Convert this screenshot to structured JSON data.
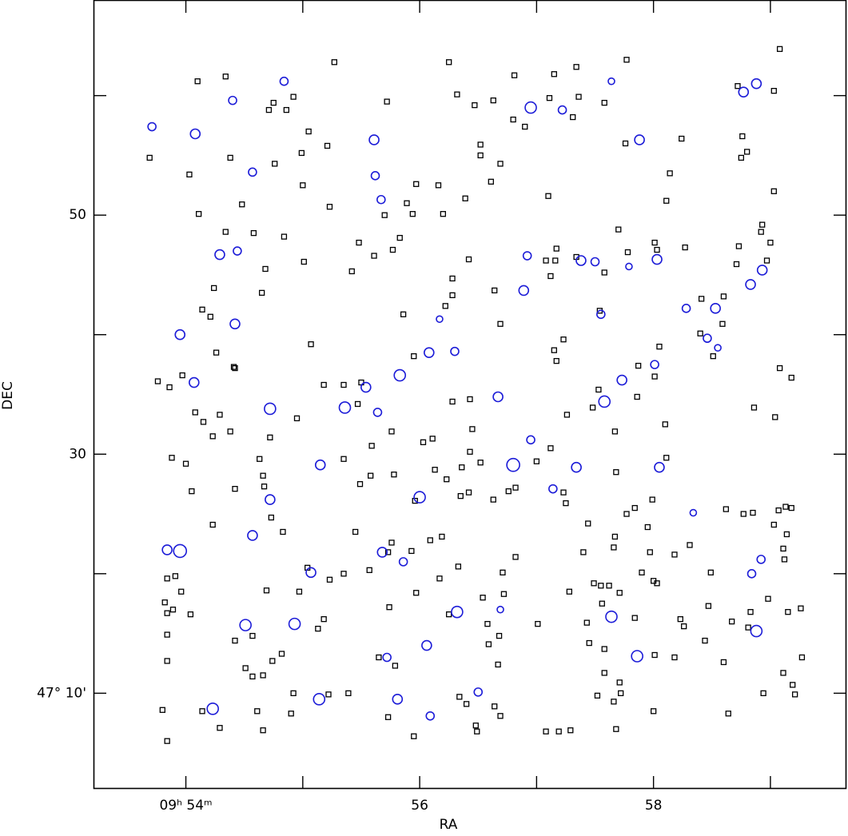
{
  "chart_data": {
    "type": "scatter",
    "x_label": "RA",
    "y_label": "DEC",
    "xlim": [
      53.21,
      59.65
    ],
    "ylim": [
      2,
      68
    ],
    "xticks": [
      {
        "value": 54,
        "label": "09ʰ 54ᵐ"
      },
      56,
      58
    ],
    "xminor": [
      55,
      57,
      59
    ],
    "yticks": [
      {
        "value": 10,
        "label": "47° 10'"
      },
      30,
      50
    ],
    "yminor": [
      20,
      40,
      60
    ],
    "series": [
      {
        "marker": "square",
        "color": "#000000",
        "x": [
          53.69,
          54.1,
          54.34,
          55.27,
          56.25,
          56.81,
          57.15,
          57.34,
          57.77,
          59.08,
          58.72,
          59.03,
          54.71,
          54.75,
          54.86,
          54.92,
          55.72,
          56.32,
          56.47,
          56.63,
          56.8,
          56.9,
          57.11,
          57.31,
          57.36,
          57.58,
          55.05,
          54.99,
          55.21,
          56.52,
          56.52,
          56.69,
          56.61,
          57.76,
          58.24,
          58.76,
          58.75,
          58.8,
          54.38,
          54.76,
          54.03,
          54.48,
          54.11,
          54.58,
          54.34,
          54.84,
          55.0,
          55.23,
          55.89,
          55.94,
          55.97,
          56.16,
          56.2,
          56.39,
          55.7,
          57.1,
          58.14,
          58.11,
          59.03,
          58.93,
          58.92,
          59.0,
          58.73,
          58.71,
          58.97,
          58.27,
          58.03,
          58.01,
          57.7,
          57.58,
          57.78,
          57.17,
          57.16,
          57.08,
          57.12,
          57.34,
          56.42,
          56.28,
          56.28,
          56.22,
          56.64,
          56.69,
          55.48,
          55.61,
          55.77,
          55.83,
          55.42,
          55.01,
          54.68,
          54.65,
          54.24,
          54.14,
          54.21,
          54.26,
          54.41,
          55.07,
          55.86,
          55.95,
          57.15,
          57.23,
          57.17,
          57.54,
          58.41,
          58.6,
          58.59,
          58.4,
          58.51,
          58.05,
          57.87,
          58.01,
          59.08,
          59.18,
          58.86,
          59.04,
          58.1,
          57.86,
          57.67,
          57.53,
          57.48,
          57.26,
          56.43,
          56.28,
          56.11,
          56.03,
          55.76,
          55.59,
          55.5,
          55.35,
          55.47,
          55.18,
          55.35,
          54.95,
          54.72,
          54.63,
          54.66,
          54.67,
          54.73,
          54.83,
          54.23,
          54.42,
          54.05,
          54.0,
          53.88,
          53.76,
          53.86,
          53.97,
          54.08,
          54.15,
          54.23,
          54.29,
          54.38,
          54.42,
          56.36,
          56.43,
          56.45,
          56.52,
          56.13,
          56.23,
          55.78,
          55.58,
          55.49,
          55.96,
          56.42,
          56.35,
          56.63,
          56.76,
          56.82,
          57.0,
          57.12,
          57.23,
          57.25,
          57.68,
          58.11,
          57.99,
          57.84,
          57.77,
          57.95,
          58.62,
          58.77,
          58.85,
          59.07,
          59.13,
          59.18,
          59.03,
          59.14,
          59.11,
          59.12,
          58.98,
          59.26,
          59.15,
          59.27,
          59.11,
          59.19,
          59.21,
          58.94,
          58.83,
          58.67,
          58.81,
          58.6,
          58.44,
          58.49,
          58.47,
          58.31,
          58.18,
          58.0,
          58.03,
          57.97,
          57.9,
          57.67,
          57.66,
          57.44,
          57.4,
          57.49,
          57.62,
          57.55,
          57.71,
          57.56,
          57.28,
          56.72,
          56.71,
          56.82,
          56.54,
          56.33,
          56.17,
          56.19,
          56.09,
          55.93,
          55.73,
          55.76,
          55.45,
          55.57,
          55.35,
          55.23,
          55.04,
          54.97,
          54.69,
          54.51,
          54.57,
          54.66,
          54.74,
          54.82,
          55.18,
          55.13,
          54.57,
          54.42,
          55.65,
          55.79,
          55.74,
          55.97,
          56.25,
          56.58,
          56.59,
          56.68,
          56.67,
          57.01,
          57.43,
          57.45,
          57.58,
          57.84,
          58.23,
          58.26,
          58.18,
          58.01,
          57.58,
          57.71,
          57.72,
          57.66,
          57.52,
          58.0,
          57.68,
          58.64,
          57.29,
          57.08,
          57.19,
          56.69,
          56.64,
          56.48,
          56.49,
          56.4,
          56.34,
          55.95,
          55.73,
          55.22,
          55.39,
          54.92,
          54.9,
          54.61,
          54.66,
          54.29,
          54.14,
          53.84,
          53.8,
          53.84,
          53.84,
          53.89,
          53.84,
          53.82,
          53.84,
          54.04,
          53.96,
          53.91
        ],
        "values": [
          54.8,
          61.2,
          61.6,
          62.8,
          62.8,
          61.7,
          61.8,
          62.4,
          63.0,
          63.9,
          60.8,
          60.4,
          58.8,
          59.4,
          58.8,
          59.9,
          59.5,
          60.1,
          59.2,
          59.6,
          58.0,
          57.4,
          59.8,
          58.2,
          59.9,
          59.4,
          57.0,
          55.2,
          55.8,
          55.9,
          55.0,
          54.3,
          52.8,
          56.0,
          56.4,
          56.6,
          54.8,
          55.3,
          54.8,
          54.3,
          53.4,
          50.9,
          50.1,
          48.5,
          48.6,
          48.2,
          52.5,
          50.7,
          51.0,
          50.1,
          52.6,
          52.5,
          50.1,
          51.4,
          50.0,
          51.6,
          53.5,
          51.2,
          52.0,
          49.2,
          48.6,
          47.7,
          47.4,
          45.9,
          46.2,
          47.3,
          47.1,
          47.7,
          48.8,
          45.2,
          46.9,
          47.2,
          46.2,
          46.2,
          44.9,
          46.5,
          46.3,
          44.7,
          43.3,
          42.4,
          43.7,
          40.9,
          47.7,
          46.6,
          47.1,
          48.1,
          45.3,
          46.1,
          45.5,
          43.5,
          43.9,
          42.1,
          41.5,
          38.5,
          37.3,
          39.2,
          41.7,
          38.2,
          38.7,
          39.6,
          37.8,
          42.0,
          43.0,
          43.2,
          40.9,
          40.1,
          38.2,
          39.0,
          37.4,
          36.5,
          37.2,
          36.4,
          33.9,
          33.1,
          32.5,
          34.8,
          31.9,
          35.4,
          33.9,
          33.3,
          34.6,
          34.4,
          31.3,
          31.0,
          31.9,
          30.7,
          36.0,
          35.8,
          34.2,
          35.8,
          29.6,
          33.0,
          31.4,
          29.6,
          28.2,
          27.3,
          24.7,
          23.5,
          24.1,
          27.1,
          26.9,
          29.2,
          29.7,
          36.1,
          35.6,
          36.6,
          33.5,
          32.7,
          31.5,
          33.3,
          31.9,
          37.2,
          28.9,
          30.2,
          32.1,
          29.3,
          28.7,
          27.9,
          28.3,
          28.2,
          27.5,
          26.1,
          26.8,
          26.5,
          26.2,
          26.9,
          27.2,
          29.4,
          30.5,
          26.8,
          25.9,
          28.5,
          29.7,
          26.2,
          25.5,
          25.0,
          23.9,
          25.4,
          25.0,
          25.1,
          25.3,
          25.6,
          25.5,
          24.1,
          23.3,
          22.1,
          21.2,
          17.9,
          17.1,
          16.8,
          13.0,
          11.7,
          10.7,
          9.9,
          10.0,
          16.8,
          16.0,
          15.5,
          12.6,
          14.4,
          20.1,
          17.3,
          22.4,
          21.6,
          19.4,
          19.2,
          21.8,
          20.1,
          23.1,
          22.2,
          24.2,
          21.8,
          19.2,
          19.0,
          19.0,
          18.4,
          17.5,
          18.5,
          18.3,
          20.1,
          21.4,
          18.0,
          20.6,
          19.6,
          23.1,
          22.8,
          21.9,
          21.8,
          22.6,
          23.5,
          20.3,
          20.0,
          19.5,
          20.5,
          18.5,
          18.6,
          12.1,
          11.4,
          11.5,
          12.7,
          13.3,
          16.2,
          15.4,
          14.8,
          14.4,
          13.0,
          12.3,
          17.2,
          18.4,
          16.6,
          15.8,
          14.1,
          14.8,
          12.4,
          15.8,
          15.9,
          14.2,
          13.7,
          16.3,
          16.2,
          15.6,
          13.0,
          13.2,
          11.7,
          10.9,
          10.0,
          9.3,
          9.8,
          8.5,
          7.0,
          8.3,
          6.9,
          6.8,
          6.8,
          8.1,
          8.9,
          7.3,
          6.8,
          9.1,
          9.7,
          6.4,
          8.0,
          9.9,
          10.0,
          10.0,
          8.3,
          8.5,
          6.9,
          7.1,
          8.5,
          6.0,
          8.6,
          12.7,
          14.9,
          17.0,
          16.7,
          17.6,
          19.6,
          16.6,
          18.5,
          19.8
        ]
      },
      {
        "marker": "circle",
        "color": "#1c1cd8",
        "x": [
          53.71,
          54.08,
          54.84,
          54.4,
          58.77,
          58.88,
          57.64,
          56.95,
          57.22,
          57.88,
          55.61,
          55.62,
          54.57,
          55.67,
          54.29,
          54.44,
          53.95,
          54.42,
          54.07,
          54.72,
          55.36,
          55.54,
          55.83,
          55.64,
          56.08,
          56.3,
          56.17,
          56.89,
          56.92,
          57.38,
          57.5,
          57.55,
          57.79,
          58.03,
          58.28,
          58.53,
          58.46,
          58.55,
          58.83,
          58.93,
          57.73,
          57.58,
          58.01,
          56.95,
          56.8,
          57.34,
          57.14,
          58.05,
          56.67,
          56.0,
          55.15,
          54.72,
          54.57,
          53.95,
          53.84,
          55.07,
          55.68,
          55.86,
          56.32,
          56.69,
          57.64,
          57.86,
          56.06,
          55.72,
          54.51,
          54.93,
          54.23,
          55.14,
          55.81,
          56.09,
          56.5,
          58.34,
          58.92,
          58.84,
          58.88
        ],
        "values": [
          57.4,
          56.8,
          61.2,
          59.6,
          60.3,
          61.0,
          61.2,
          59.0,
          58.8,
          56.3,
          56.3,
          53.3,
          53.6,
          51.3,
          46.7,
          47.0,
          40.0,
          40.9,
          36.0,
          33.8,
          33.9,
          35.6,
          36.6,
          33.5,
          38.5,
          38.6,
          41.3,
          43.7,
          46.6,
          46.2,
          46.1,
          41.7,
          45.7,
          46.3,
          42.2,
          42.2,
          39.7,
          38.9,
          44.2,
          45.4,
          36.2,
          34.4,
          37.5,
          31.2,
          29.1,
          28.9,
          27.1,
          28.9,
          34.8,
          26.4,
          29.1,
          26.2,
          23.2,
          21.9,
          22.0,
          20.1,
          21.8,
          21.0,
          16.8,
          17.0,
          16.4,
          13.1,
          14.0,
          13.0,
          15.7,
          15.8,
          8.7,
          9.5,
          9.5,
          8.1,
          10.1,
          25.1,
          21.2,
          20.0,
          15.2
        ],
        "sizes": [
          5,
          6,
          5,
          5,
          6,
          6,
          4,
          7,
          5,
          6,
          6,
          5,
          5,
          5,
          6,
          5,
          6,
          6,
          6,
          7,
          7,
          6,
          7,
          5,
          6,
          5,
          4,
          6,
          5,
          6,
          5,
          5,
          4,
          6,
          5,
          6,
          5,
          4,
          6,
          6,
          6,
          7,
          5,
          5,
          8,
          6,
          5,
          6,
          6,
          7,
          6,
          6,
          6,
          8,
          6,
          6,
          6,
          5,
          7,
          4,
          7,
          7,
          6,
          5,
          7,
          7,
          7,
          7,
          6,
          5,
          5,
          4,
          5,
          5,
          7
        ]
      }
    ]
  }
}
